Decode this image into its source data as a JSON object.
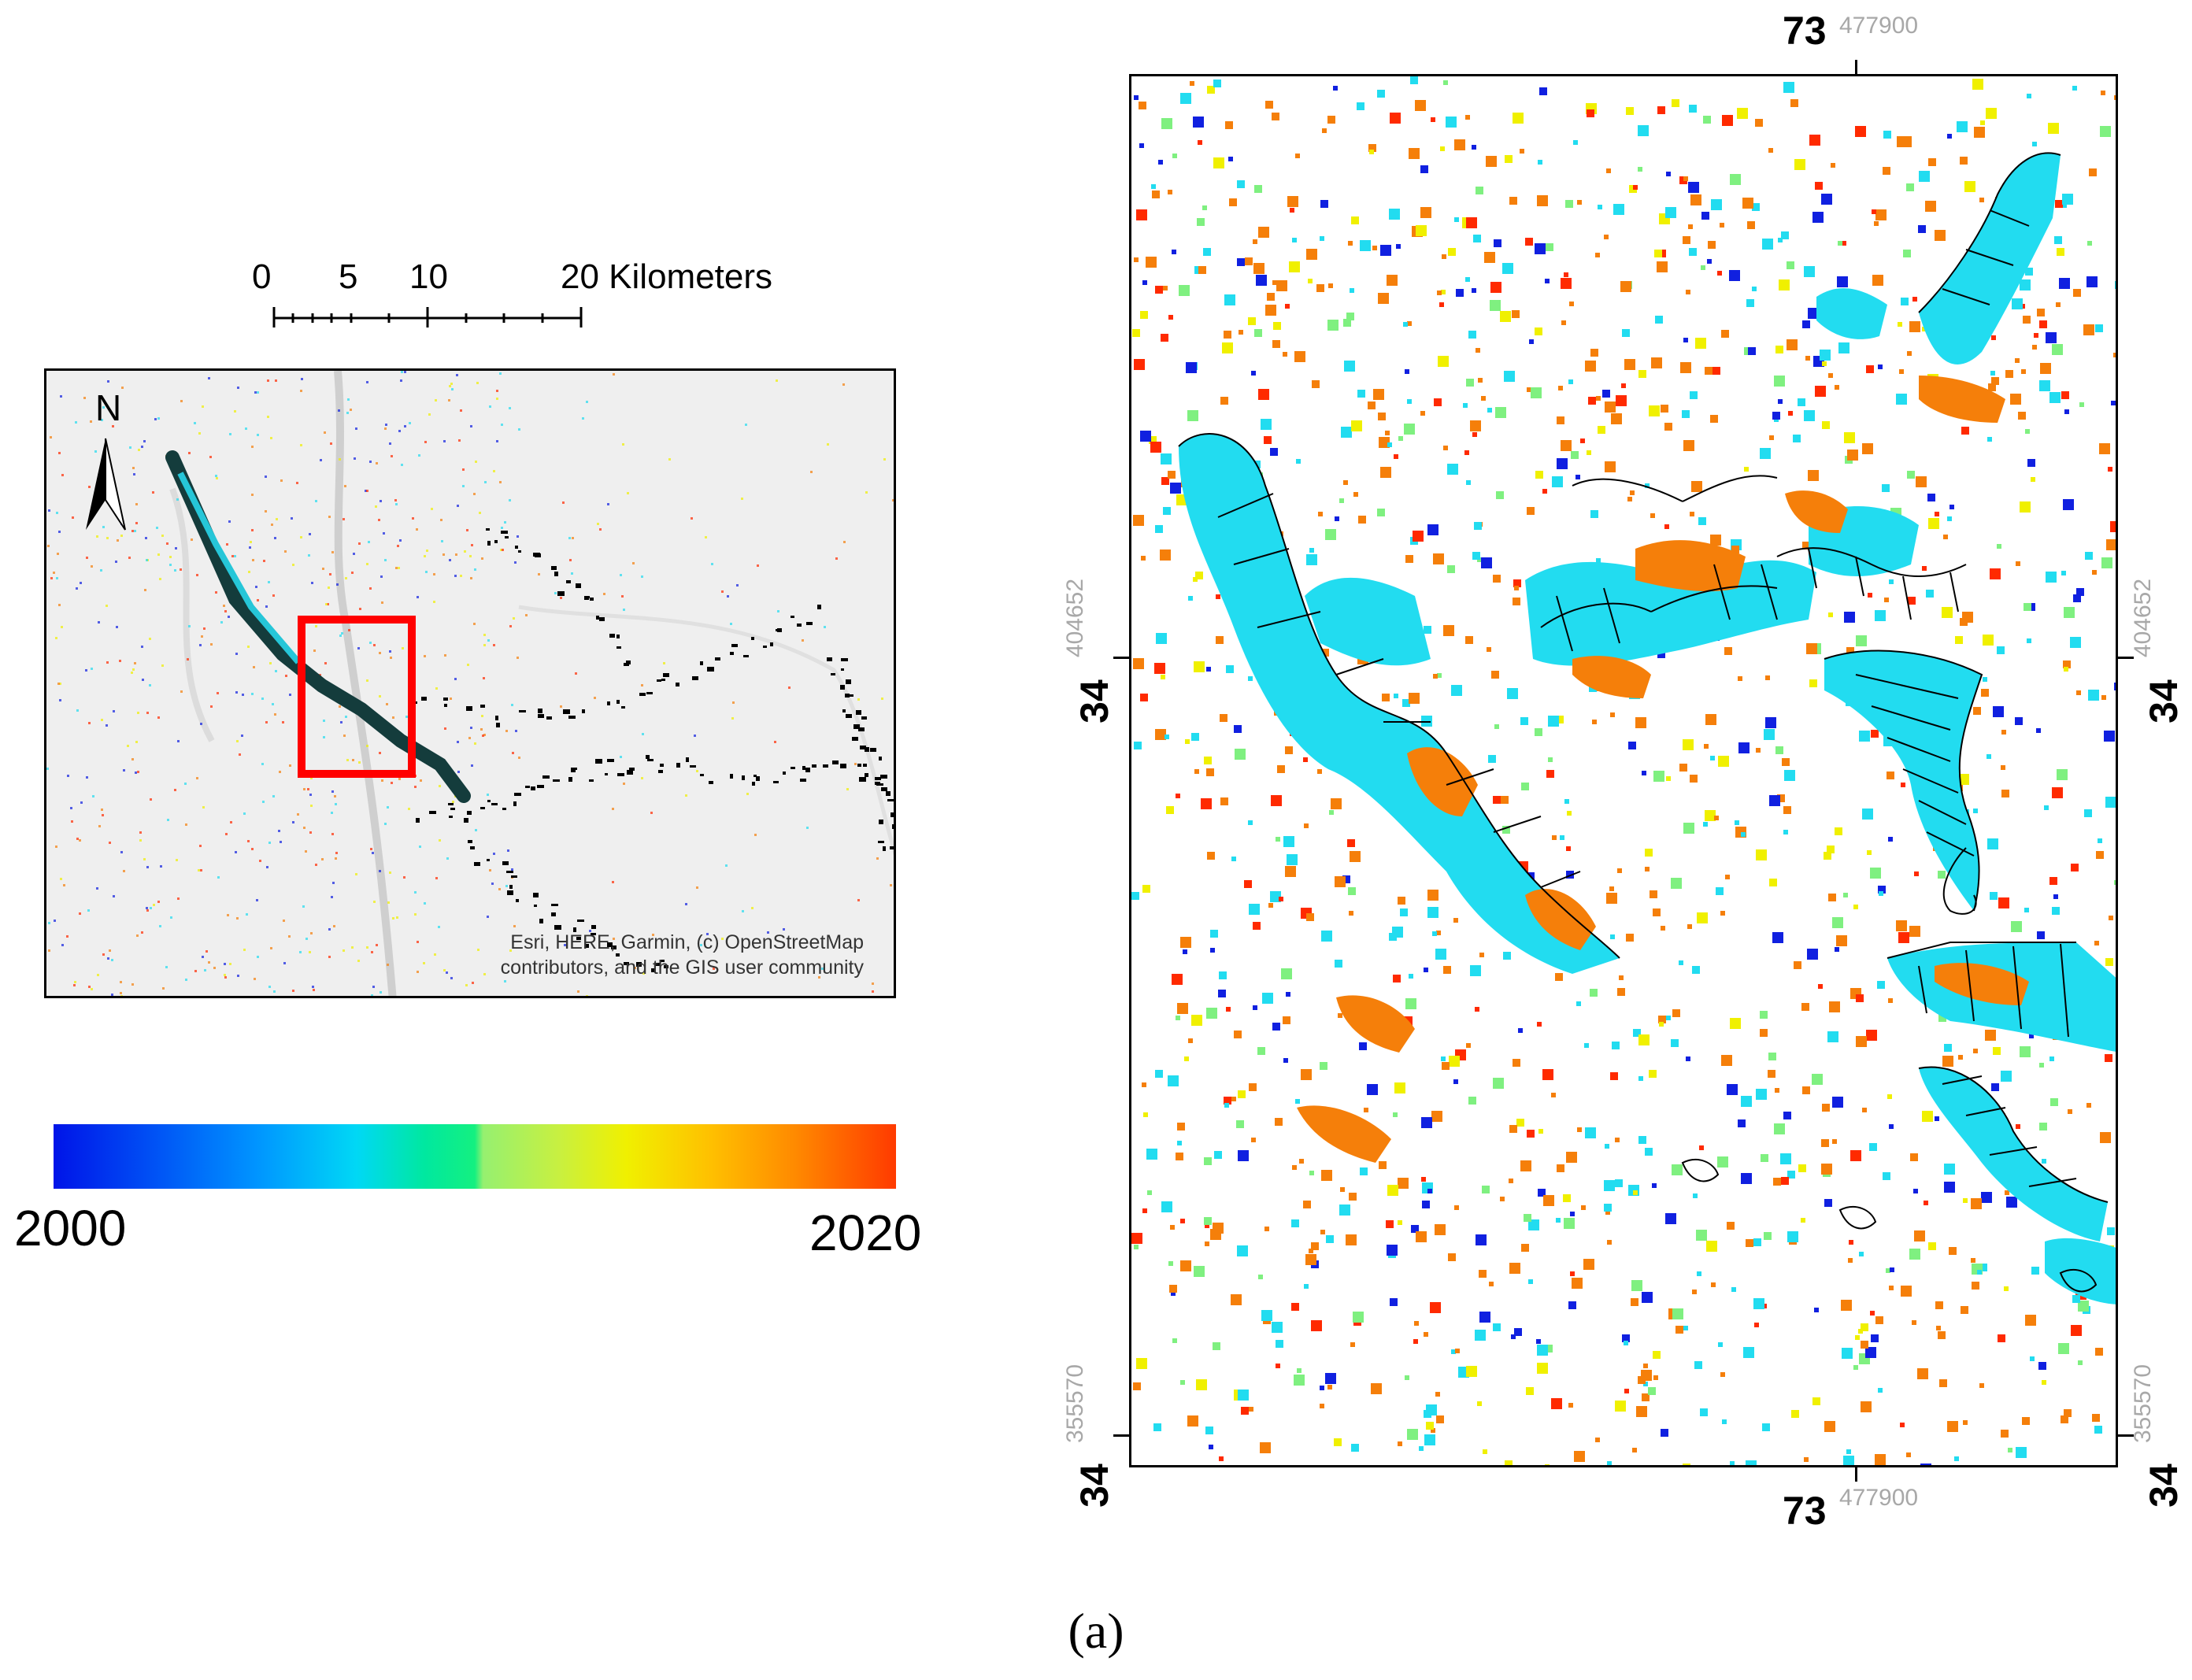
{
  "scale_bar": {
    "labels": [
      "0",
      "5",
      "10",
      "20 Kilometers"
    ]
  },
  "overview_map": {
    "north_label": "N",
    "credit": "Esri, HERE, Garmin, (c) OpenStreetMap\ncontributors, and the GIS user community",
    "highlight_color": "#ff0000"
  },
  "legend": {
    "min_label": "2000",
    "max_label": "2020",
    "colors": [
      "#0014e8",
      "#0094ff",
      "#00d8f5",
      "#14f080",
      "#96f070",
      "#f0f000",
      "#ff8a00",
      "#ff3a00"
    ]
  },
  "detail_map": {
    "top_lon": {
      "deg": "73",
      "value": "477900"
    },
    "bottom_lon": {
      "deg": "73",
      "value": "477900"
    },
    "left_lat_upper": {
      "deg": "34",
      "value": "404652"
    },
    "left_lat_lower": {
      "deg": "34",
      "value": "355570"
    },
    "right_lat_upper": {
      "deg": "34",
      "value": "404652"
    },
    "right_lat_lower": {
      "deg": "34",
      "value": "355570"
    },
    "colors": {
      "cyan": "#22dcf0",
      "orange": "#f57f0a",
      "red": "#ff2a00",
      "blue": "#1020e0",
      "yellow": "#f0f000",
      "green": "#7ff080"
    }
  },
  "caption": "(a)"
}
